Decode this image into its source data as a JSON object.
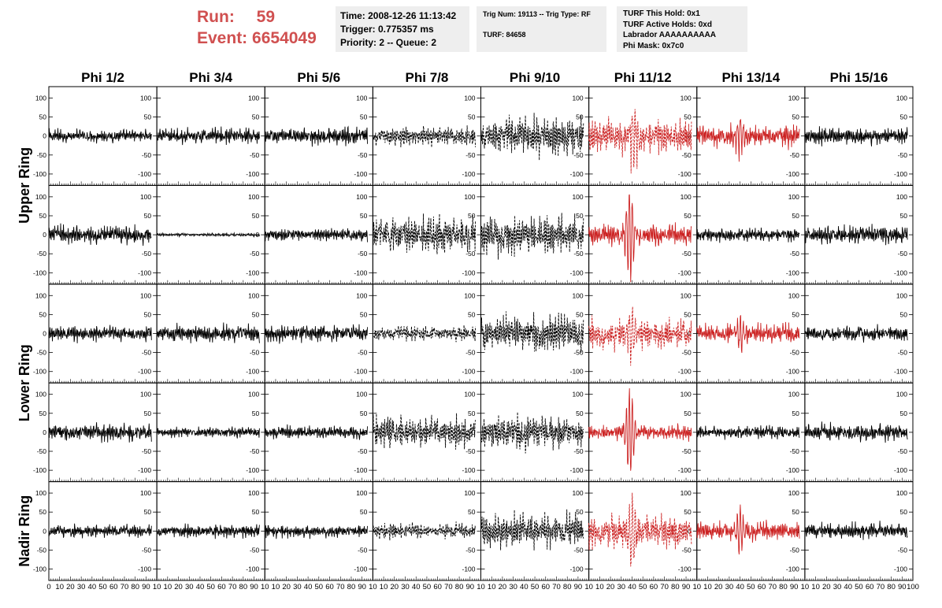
{
  "run_info": {
    "run_label": "Run:",
    "run_value": "59",
    "event_label": "Event:",
    "event_value": "6654049"
  },
  "time_info": {
    "time": "Time: 2008-12-26 11:13:42",
    "trigger": "Trigger: 0.775357 ms",
    "priority": "Priority: 2 -- Queue: 2"
  },
  "trig_info": {
    "trig_num": "Trig Num: 19113 -- Trig Type: RF",
    "turf": "TURF: 84658"
  },
  "turf_info": {
    "this_hold": "TURF This Hold: 0x1",
    "active_holds": "TURF Active Holds: 0xd",
    "labrador": "Labrador AAAAAAAAAA",
    "phi_mask": "Phi Mask: 0x7c0"
  },
  "colors": {
    "red_header": "#d05050",
    "red_trace": "#cc2222",
    "black_trace": "#000000",
    "box_bg": "#eeeeee"
  },
  "chart_data": {
    "type": "line",
    "title": "",
    "columns": [
      "Phi 1/2",
      "Phi 3/4",
      "Phi 5/6",
      "Phi 7/8",
      "Phi 9/10",
      "Phi 11/12",
      "Phi 13/14",
      "Phi 15/16"
    ],
    "ring_labels": [
      {
        "label": "Upper Ring",
        "rows": [
          0,
          1
        ]
      },
      {
        "label": "Lower Ring",
        "rows": [
          2,
          3
        ]
      },
      {
        "label": "Nadir Ring",
        "rows": [
          4
        ]
      }
    ],
    "xlim": [
      0,
      100
    ],
    "ylim": [
      -130,
      130
    ],
    "y_ticks": [
      -100,
      -50,
      0,
      50,
      100
    ],
    "x_ticks": [
      0,
      10,
      20,
      30,
      40,
      50,
      60,
      70,
      80,
      90,
      100
    ],
    "x_tick_labels_last_column": [
      "0",
      "10",
      "20",
      "30",
      "40",
      "50",
      "60",
      "70",
      "80",
      "90",
      "100"
    ],
    "x_tick_labels_other_columns": [
      "0",
      "10",
      "20",
      "30",
      "40",
      "50",
      "60",
      "70",
      "80",
      "90",
      "10"
    ],
    "trace_x_range": [
      0,
      95
    ],
    "grid": false,
    "panels": [
      [
        {
          "amp": 15,
          "style": "solid",
          "color": "black"
        },
        {
          "amp": 18,
          "style": "solid",
          "color": "black"
        },
        {
          "amp": 20,
          "style": "solid",
          "color": "black"
        },
        {
          "amp": 22,
          "style": "dashed",
          "color": "black"
        },
        {
          "amp": 45,
          "style": "dashed",
          "color": "black"
        },
        {
          "amp": 40,
          "style": "dashed",
          "color": "red",
          "peak": 42,
          "peak_amp": 75
        },
        {
          "amp": 25,
          "style": "solid",
          "color": "red",
          "peak": 40,
          "peak_amp": 55
        },
        {
          "amp": 20,
          "style": "solid",
          "color": "black"
        }
      ],
      [
        {
          "amp": 22,
          "style": "solid",
          "color": "black"
        },
        {
          "amp": 4,
          "style": "solid",
          "color": "black"
        },
        {
          "amp": 15,
          "style": "solid",
          "color": "black"
        },
        {
          "amp": 45,
          "style": "dashed",
          "color": "black"
        },
        {
          "amp": 45,
          "style": "dashed",
          "color": "black"
        },
        {
          "amp": 25,
          "style": "solid",
          "color": "red",
          "peak": 38,
          "peak_amp": 125
        },
        {
          "amp": 15,
          "style": "solid",
          "color": "black"
        },
        {
          "amp": 22,
          "style": "solid",
          "color": "black"
        }
      ],
      [
        {
          "amp": 18,
          "style": "solid",
          "color": "black"
        },
        {
          "amp": 20,
          "style": "solid",
          "color": "black"
        },
        {
          "amp": 20,
          "style": "solid",
          "color": "black"
        },
        {
          "amp": 18,
          "style": "dashed",
          "color": "black"
        },
        {
          "amp": 45,
          "style": "dashed",
          "color": "black"
        },
        {
          "amp": 35,
          "style": "dashed",
          "color": "red",
          "peak": 40,
          "peak_amp": 70
        },
        {
          "amp": 22,
          "style": "solid",
          "color": "red",
          "peak": 40,
          "peak_amp": 45
        },
        {
          "amp": 18,
          "style": "solid",
          "color": "black"
        }
      ],
      [
        {
          "amp": 20,
          "style": "solid",
          "color": "black"
        },
        {
          "amp": 12,
          "style": "solid",
          "color": "black"
        },
        {
          "amp": 15,
          "style": "solid",
          "color": "black"
        },
        {
          "amp": 38,
          "style": "dashed",
          "color": "black"
        },
        {
          "amp": 40,
          "style": "dashed",
          "color": "black"
        },
        {
          "amp": 18,
          "style": "solid",
          "color": "red",
          "peak": 38,
          "peak_amp": 115
        },
        {
          "amp": 15,
          "style": "solid",
          "color": "black"
        },
        {
          "amp": 20,
          "style": "solid",
          "color": "black"
        }
      ],
      [
        {
          "amp": 15,
          "style": "solid",
          "color": "black"
        },
        {
          "amp": 15,
          "style": "solid",
          "color": "black"
        },
        {
          "amp": 15,
          "style": "solid",
          "color": "black"
        },
        {
          "amp": 18,
          "style": "dashed",
          "color": "black"
        },
        {
          "amp": 40,
          "style": "dashed",
          "color": "black"
        },
        {
          "amp": 40,
          "style": "dashed",
          "color": "red",
          "peak": 40,
          "peak_amp": 80
        },
        {
          "amp": 22,
          "style": "solid",
          "color": "red",
          "peak": 40,
          "peak_amp": 60
        },
        {
          "amp": 20,
          "style": "solid",
          "color": "black"
        }
      ]
    ]
  }
}
